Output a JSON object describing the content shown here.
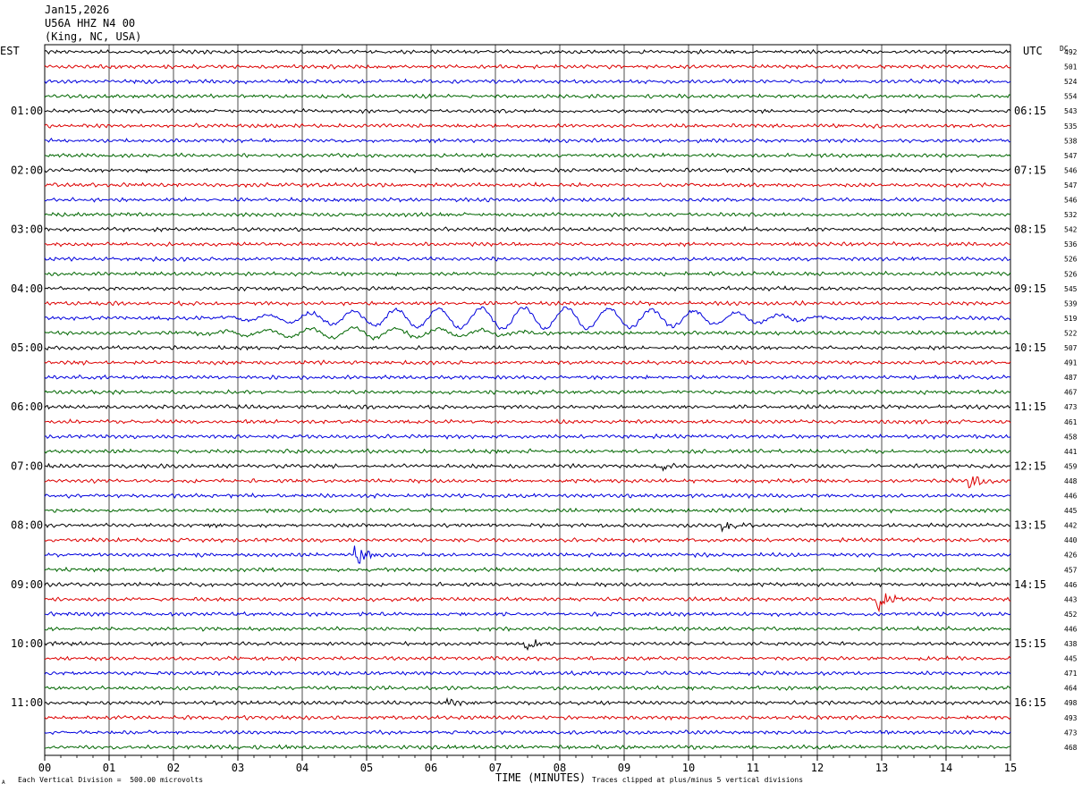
{
  "header": {
    "date": "Jan15,2026",
    "station": "U56A HHZ N4 00",
    "location": "(King, NC, USA)"
  },
  "left_timezone": "EST",
  "right_timezone": "UTC",
  "dc_header": "DC",
  "footer": {
    "scale_note": "Each Vertical Division =  500.00 microvolts",
    "clip_note": "Traces clipped at plus/minus 5 vertical divisions",
    "corner_mark": "A"
  },
  "colors": {
    "trace_cycle": [
      "#000000",
      "#dd0000",
      "#0000dd",
      "#006600"
    ],
    "grid": "#000000"
  },
  "chart_data": {
    "type": "line",
    "xlabel": "TIME (MINUTES)",
    "xlim": [
      0,
      15
    ],
    "x_ticks": [
      "00",
      "01",
      "02",
      "03",
      "04",
      "05",
      "06",
      "07",
      "08",
      "09",
      "10",
      "11",
      "12",
      "13",
      "14",
      "15"
    ],
    "trace_count": 48,
    "left_hour_labels": [
      "01:00",
      "02:00",
      "03:00",
      "04:00",
      "05:00",
      "06:00",
      "07:00",
      "08:00",
      "09:00",
      "10:00",
      "11:00"
    ],
    "right_hour_labels": [
      "06:15",
      "07:15",
      "08:15",
      "09:15",
      "10:15",
      "11:15",
      "12:15",
      "13:15",
      "14:15",
      "15:15",
      "16:15"
    ],
    "hour_label_every_traces": 4,
    "hour_label_first_trace": 4,
    "dc_offsets": [
      492,
      501,
      524,
      554,
      543,
      535,
      538,
      547,
      546,
      547,
      546,
      532,
      542,
      536,
      526,
      526,
      545,
      539,
      519,
      522,
      507,
      491,
      487,
      467,
      473,
      461,
      458,
      441,
      459,
      448,
      446,
      445,
      442,
      440,
      426,
      457,
      446,
      443,
      452,
      446,
      438,
      445,
      471,
      464,
      498,
      493,
      473,
      468
    ],
    "events": [
      {
        "trace": 18,
        "x_start": 2.5,
        "x_end": 12.5,
        "amplitude": 3.0,
        "type": "surface wave"
      },
      {
        "trace": 19,
        "x_start": 2.0,
        "x_end": 8.0,
        "amplitude": 1.4,
        "type": "surface wave"
      },
      {
        "trace": 28,
        "x": 9.6,
        "amplitude": 1.4
      },
      {
        "trace": 29,
        "x": 14.4,
        "amplitude": 2.2
      },
      {
        "trace": 32,
        "x": 10.55,
        "amplitude": 1.6
      },
      {
        "trace": 34,
        "x": 4.85,
        "amplitude": 3.6
      },
      {
        "trace": 37,
        "x": 12.95,
        "amplitude": 3.2
      },
      {
        "trace": 40,
        "x": 7.5,
        "amplitude": 1.6
      },
      {
        "trace": 44,
        "x": 6.3,
        "amplitude": 1.4
      }
    ]
  }
}
